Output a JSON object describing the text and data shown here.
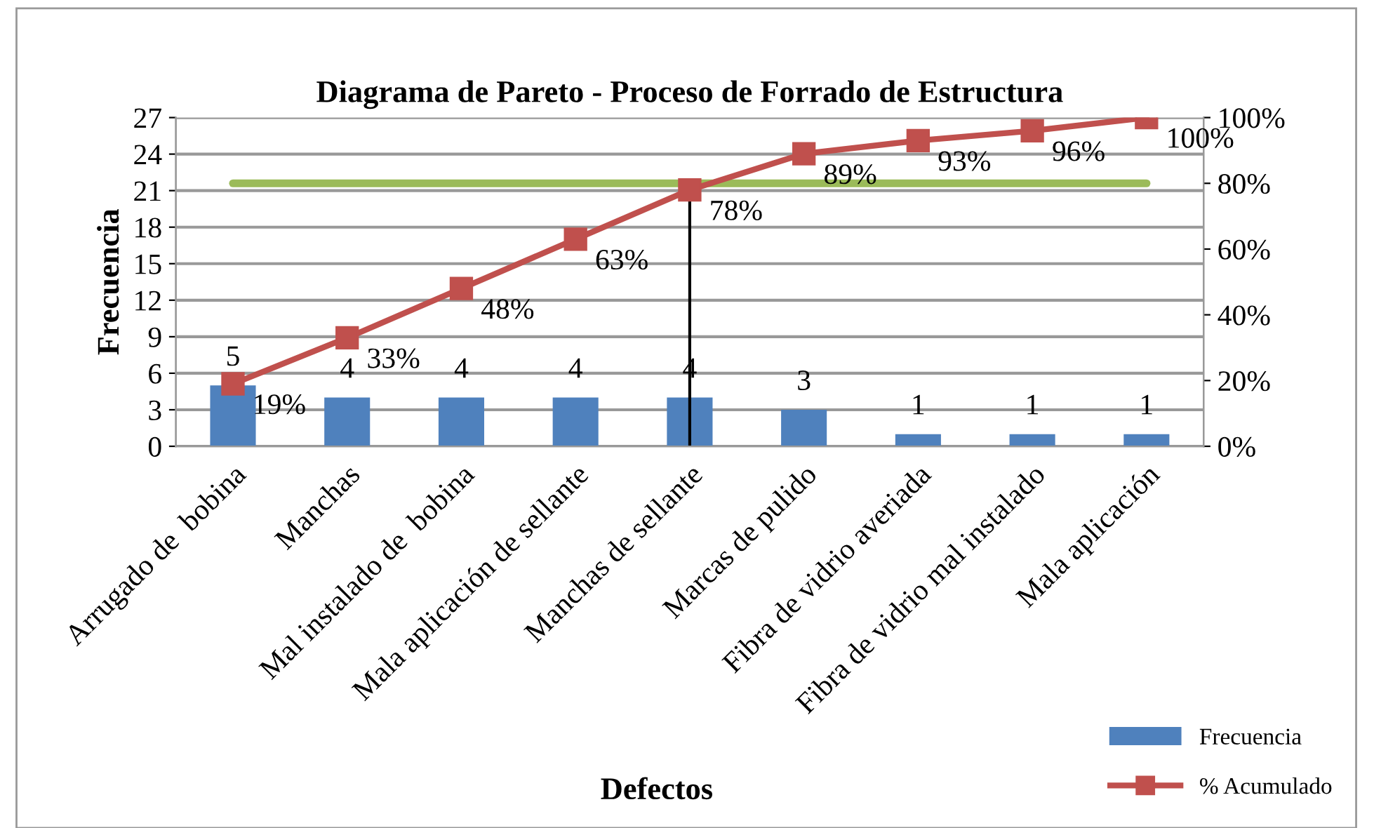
{
  "chart_data": {
    "type": "bar",
    "title": "Diagrama de Pareto - Proceso de Forrado de Estructura",
    "xlabel": "Defectos",
    "ylabel": "Frecuencia",
    "categories": [
      "Arrugado de  bobina",
      "Manchas",
      "Mal instalado de  bobina",
      "Mala aplicación de sellante",
      "Manchas de sellante",
      "Marcas de pulido",
      "Fibra de vidrio averiada",
      "Fibra de vidrio mal instalado",
      "Mala aplicación"
    ],
    "series": [
      {
        "name": "Frecuencia",
        "color": "#4f81bd",
        "values": [
          5,
          4,
          4,
          4,
          4,
          3,
          1,
          1,
          1
        ]
      },
      {
        "name": "% Acumulado",
        "type": "line",
        "axis": "y2",
        "color": "#c0504d",
        "marker": "square",
        "values": [
          19,
          33,
          48,
          63,
          78,
          89,
          93,
          96,
          100
        ],
        "value_labels": [
          "19%",
          "33%",
          "48%",
          "63%",
          "78%",
          "89%",
          "93%",
          "96%",
          "100%"
        ]
      }
    ],
    "data_labels": true,
    "ylim": [
      0,
      27
    ],
    "yticks": [
      0,
      3,
      6,
      9,
      12,
      15,
      18,
      21,
      24,
      27
    ],
    "y2lim": [
      0,
      100
    ],
    "y2ticks": [
      {
        "value": 0,
        "label": "0%"
      },
      {
        "value": 20,
        "label": "20%"
      },
      {
        "value": 40,
        "label": "40%"
      },
      {
        "value": 60,
        "label": "60%"
      },
      {
        "value": 80,
        "label": "80%"
      },
      {
        "value": 100,
        "label": "100%"
      }
    ],
    "ref_lines": [
      {
        "axis": "y2",
        "value": 80,
        "color": "#9bbb59"
      },
      {
        "axis": "x",
        "value": "Manchas de sellante",
        "color": "#000000"
      }
    ],
    "grid": "y",
    "legend": "bottom right"
  }
}
